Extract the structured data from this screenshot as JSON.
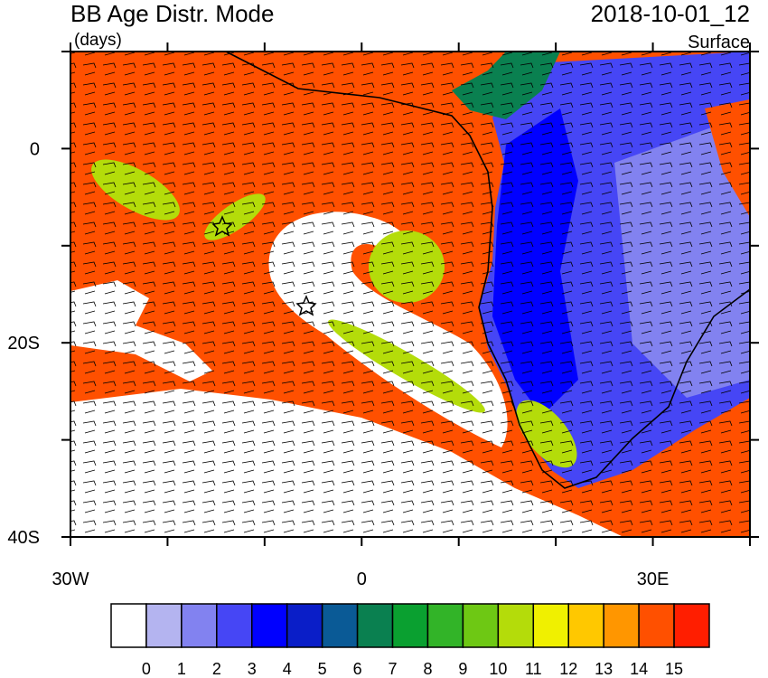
{
  "header": {
    "title": "BB Age Distr. Mode",
    "units": "(days)",
    "date": "2018-10-01_12",
    "level": "Surface"
  },
  "map": {
    "lon_range": [
      -30,
      40
    ],
    "lat_range": [
      -40,
      10
    ],
    "lon_ticks": [
      -30,
      -20,
      -10,
      0,
      10,
      20,
      30,
      40
    ],
    "lat_ticks": [
      -40,
      -30,
      -20,
      -10,
      0,
      10
    ],
    "lon_labels": [
      {
        "value": -30,
        "label": "30W"
      },
      {
        "value": 0,
        "label": "0"
      },
      {
        "value": 30,
        "label": "30E"
      }
    ],
    "lat_labels": [
      {
        "value": 0,
        "label": "0"
      },
      {
        "value": -20,
        "label": "20S"
      },
      {
        "value": -40,
        "label": "40S"
      }
    ]
  },
  "colorbar": {
    "levels": [
      0,
      1,
      2,
      3,
      4,
      5,
      6,
      7,
      8,
      9,
      10,
      11,
      12,
      13,
      14,
      15
    ],
    "colors": [
      "#ffffff",
      "#b4b4f0",
      "#8282f0",
      "#4646f5",
      "#0000ff",
      "#0a1ec8",
      "#0a5a96",
      "#0a8050",
      "#0aa030",
      "#32b428",
      "#6ec814",
      "#b4dc0a",
      "#f0f000",
      "#ffc800",
      "#ff9600",
      "#ff5000",
      "#ff1e00"
    ]
  }
}
